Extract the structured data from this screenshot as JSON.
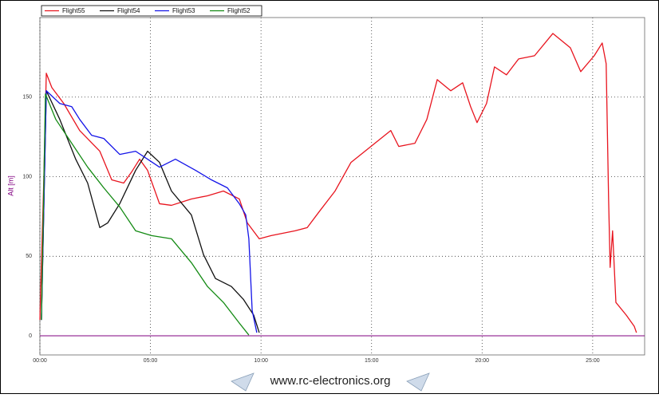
{
  "chart_data": {
    "type": "line",
    "ylabel": "Alt [m]",
    "xlim": [
      0,
      27.35
    ],
    "ylim": [
      -12,
      200
    ],
    "xticks": [
      {
        "value": 0,
        "label": "00:00"
      },
      {
        "value": 5,
        "label": "05:00"
      },
      {
        "value": 10,
        "label": "10:00"
      },
      {
        "value": 15,
        "label": "15:00"
      },
      {
        "value": 20,
        "label": "20:00"
      },
      {
        "value": 25,
        "label": "25:00"
      }
    ],
    "yticks": [
      0,
      50,
      100,
      150
    ],
    "grid": true,
    "legend": "top-left",
    "series": [
      {
        "name": "Flight55",
        "color": "#e8141e",
        "x": [
          0,
          0.18,
          0.29,
          0.54,
          1.08,
          1.8,
          2.71,
          3.25,
          3.79,
          4.15,
          4.51,
          4.87,
          5.41,
          5.95,
          6.85,
          7.58,
          8.3,
          9.02,
          9.38,
          9.92,
          10.46,
          11.54,
          12.09,
          12.63,
          13.35,
          14.07,
          14.97,
          15.87,
          16.23,
          16.96,
          17.5,
          17.97,
          18.58,
          19.12,
          19.48,
          19.77,
          20.2,
          20.56,
          21.1,
          21.65,
          22.37,
          23.2,
          23.99,
          24.46,
          25.07,
          25.43,
          25.61,
          25.72,
          25.79,
          25.9,
          26.05,
          26.52,
          26.88,
          26.98
        ],
        "values": [
          10,
          100,
          165,
          156,
          146,
          129,
          116,
          98,
          96,
          103,
          111,
          104,
          83,
          82,
          86,
          88,
          91,
          86,
          71,
          61,
          63,
          66,
          68,
          78,
          91,
          109,
          119,
          129,
          119,
          121,
          136,
          161,
          154,
          159,
          144,
          134,
          146,
          169,
          164,
          174,
          176,
          190,
          181,
          166,
          176,
          184,
          171,
          86,
          43,
          66,
          21,
          13,
          6,
          2
        ]
      },
      {
        "name": "Flight54",
        "color": "#111111",
        "x": [
          0.07,
          0.29,
          0.9,
          1.62,
          2.16,
          2.71,
          3.07,
          3.61,
          4.33,
          4.87,
          5.41,
          5.95,
          6.85,
          7.4,
          7.94,
          8.66,
          9.2,
          9.67,
          9.92
        ],
        "values": [
          10,
          154,
          136,
          111,
          96,
          68,
          71,
          83,
          104,
          116,
          109,
          91,
          76,
          51,
          36,
          31,
          23,
          13,
          2
        ]
      },
      {
        "name": "Flight53",
        "color": "#1414e8",
        "x": [
          0.07,
          0.29,
          0.9,
          1.44,
          1.8,
          2.34,
          2.89,
          3.61,
          4.33,
          4.87,
          5.41,
          6.13,
          7.04,
          7.76,
          8.48,
          9.02,
          9.31,
          9.45,
          9.6,
          9.81
        ],
        "values": [
          10,
          154,
          146,
          144,
          136,
          126,
          124,
          114,
          116,
          111,
          106,
          111,
          104,
          98,
          93,
          83,
          76,
          61,
          16,
          2
        ]
      },
      {
        "name": "Flight52",
        "color": "#138a13",
        "x": [
          0.07,
          0.25,
          0.72,
          1.44,
          2.16,
          2.89,
          3.61,
          4.33,
          5.05,
          5.95,
          6.85,
          7.58,
          8.3,
          9.02,
          9.45
        ],
        "values": [
          10,
          152,
          136,
          121,
          106,
          93,
          81,
          66,
          63,
          61,
          46,
          31,
          21,
          8,
          0.5
        ]
      }
    ]
  },
  "footer": "www.rc-electronics.org"
}
